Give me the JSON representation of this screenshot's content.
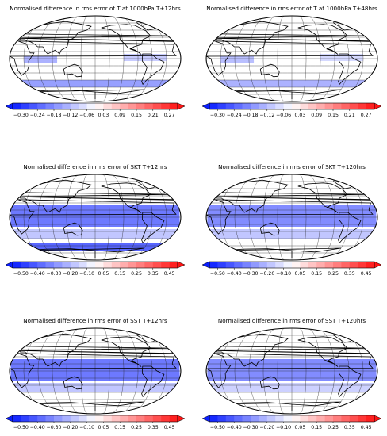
{
  "chart_data": [
    {
      "type": "heatmap",
      "title": "Normalised difference in rms error of T at 1000hPa T+12hrs",
      "projection": "robinson",
      "colorbar": {
        "ticks": [
          "−0.30",
          "−0.24",
          "−0.18",
          "−0.12",
          "−0.06",
          "0.03",
          "0.09",
          "0.15",
          "0.21",
          "0.27"
        ],
        "range": [
          -0.3,
          0.3
        ],
        "extend": "both",
        "colormap": "bwr"
      },
      "regions": [
        {
          "lon_range": [
            -180,
            180
          ],
          "lat_range": [
            -60,
            -45
          ],
          "value": -0.15
        },
        {
          "lon_range": [
            -150,
            -80
          ],
          "lat_range": [
            -10,
            5
          ],
          "value": -0.12
        },
        {
          "lon_range": [
            60,
            150
          ],
          "lat_range": [
            -5,
            10
          ],
          "value": -0.08
        }
      ]
    },
    {
      "type": "heatmap",
      "title": "Normalised difference in rms error of T at 1000hPa T+48hrs",
      "projection": "robinson",
      "colorbar": {
        "ticks": [
          "−0.30",
          "−0.24",
          "−0.18",
          "−0.12",
          "−0.06",
          "0.03",
          "0.09",
          "0.15",
          "0.21",
          "0.27"
        ],
        "range": [
          -0.3,
          0.3
        ],
        "extend": "both",
        "colormap": "bwr"
      },
      "regions": [
        {
          "lon_range": [
            -180,
            180
          ],
          "lat_range": [
            -60,
            -45
          ],
          "value": -0.12
        },
        {
          "lon_range": [
            -150,
            -80
          ],
          "lat_range": [
            -10,
            5
          ],
          "value": -0.1
        },
        {
          "lon_range": [
            60,
            150
          ],
          "lat_range": [
            -5,
            10
          ],
          "value": -0.06
        }
      ]
    },
    {
      "type": "heatmap",
      "title": "Normalised difference in rms error of SKT T+12hrs",
      "projection": "robinson",
      "colorbar": {
        "ticks": [
          "−0.50",
          "−0.40",
          "−0.30",
          "−0.20",
          "−0.10",
          "0.05",
          "0.15",
          "0.25",
          "0.35",
          "0.45"
        ],
        "range": [
          -0.5,
          0.5
        ],
        "extend": "both",
        "colormap": "bwr"
      },
      "regions": [
        {
          "lon_range": [
            -180,
            180
          ],
          "lat_range": [
            -20,
            25
          ],
          "value": -0.35
        },
        {
          "lon_range": [
            -180,
            180
          ],
          "lat_range": [
            -70,
            -55
          ],
          "value": -0.4
        },
        {
          "lon_range": [
            -180,
            180
          ],
          "lat_range": [
            -45,
            -25
          ],
          "value": -0.15
        }
      ]
    },
    {
      "type": "heatmap",
      "title": "Normalised difference in rms error of SKT T+120hrs",
      "projection": "robinson",
      "colorbar": {
        "ticks": [
          "−0.50",
          "−0.40",
          "−0.30",
          "−0.20",
          "−0.10",
          "0.05",
          "0.15",
          "0.25",
          "0.35",
          "0.45"
        ],
        "range": [
          -0.5,
          0.5
        ],
        "extend": "both",
        "colormap": "bwr"
      },
      "regions": [
        {
          "lon_range": [
            -180,
            180
          ],
          "lat_range": [
            -20,
            25
          ],
          "value": -0.3
        },
        {
          "lon_range": [
            -180,
            180
          ],
          "lat_range": [
            -45,
            -25
          ],
          "value": -0.15
        }
      ]
    },
    {
      "type": "heatmap",
      "title": "Normalised difference in rms error of SST T+12hrs",
      "projection": "robinson",
      "colorbar": {
        "ticks": [
          "−0.50",
          "−0.40",
          "−0.30",
          "−0.20",
          "−0.10",
          "0.05",
          "0.15",
          "0.25",
          "0.35",
          "0.45"
        ],
        "range": [
          -0.5,
          0.5
        ],
        "extend": "both",
        "colormap": "bwr"
      },
      "regions": [
        {
          "lon_range": [
            -180,
            180
          ],
          "lat_range": [
            -20,
            25
          ],
          "value": -0.35
        },
        {
          "lon_range": [
            -180,
            180
          ],
          "lat_range": [
            -45,
            -25
          ],
          "value": -0.15
        }
      ]
    },
    {
      "type": "heatmap",
      "title": "Normalised difference in rms error of SST T+120hrs",
      "projection": "robinson",
      "colorbar": {
        "ticks": [
          "−0.50",
          "−0.40",
          "−0.30",
          "−0.20",
          "−0.10",
          "0.05",
          "0.15",
          "0.25",
          "0.35",
          "0.45"
        ],
        "range": [
          -0.5,
          0.5
        ],
        "extend": "both",
        "colormap": "bwr"
      },
      "regions": [
        {
          "lon_range": [
            -180,
            180
          ],
          "lat_range": [
            -20,
            25
          ],
          "value": -0.3
        },
        {
          "lon_range": [
            -180,
            180
          ],
          "lat_range": [
            -45,
            -25
          ],
          "value": -0.12
        }
      ]
    }
  ]
}
